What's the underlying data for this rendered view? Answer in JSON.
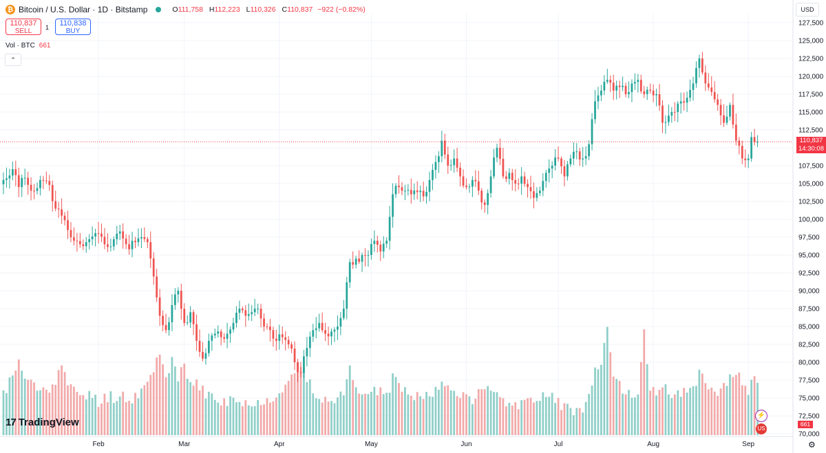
{
  "header": {
    "coin_symbol": "₿",
    "title": "Bitcoin / U.S. Dollar · 1D · Bitstamp",
    "ohlc": {
      "o_label": "O",
      "o_value": "111,758",
      "h_label": "H",
      "h_value": "112,223",
      "l_label": "L",
      "l_value": "110,326",
      "c_label": "C",
      "c_value": "110,837",
      "change": "−922 (−0.82%)"
    }
  },
  "trade": {
    "sell_price": "110,837",
    "sell_label": "SELL",
    "spread": "1",
    "buy_price": "110,838",
    "buy_label": "BUY"
  },
  "volume_legend": {
    "label": "Vol · BTC",
    "value": "661"
  },
  "collapse_symbol": "⌃",
  "currency": "USD",
  "last_price_tag": {
    "price": "110,837",
    "countdown": "14:30:08"
  },
  "volume_tag": "661",
  "logo": {
    "mark": "17",
    "text": "TradingView"
  },
  "settings_symbol": "⚙",
  "badges": {
    "flash": "⚡",
    "flag": "US"
  },
  "colors": {
    "up": "#26a69a",
    "down": "#ef5350",
    "up_vol": "#8fcfc8",
    "down_vol": "#f2a9a9",
    "grid": "#f0f3fa",
    "axis_text": "#131722",
    "last_price_line": "#f23645"
  },
  "chart_data": {
    "type": "candlestick",
    "title": "Bitcoin / U.S. Dollar · 1D · Bitstamp",
    "y_ticks": [
      70000,
      72500,
      75000,
      77500,
      80000,
      82500,
      85000,
      87500,
      90000,
      92500,
      95000,
      97500,
      100000,
      102500,
      105000,
      107500,
      110000,
      112500,
      115000,
      117500,
      120000,
      122500,
      125000,
      127500
    ],
    "ylim": [
      70000,
      127500
    ],
    "x_labels": [
      {
        "label": "Feb",
        "day": 31
      },
      {
        "label": "Mar",
        "day": 59
      },
      {
        "label": "Apr",
        "day": 90
      },
      {
        "label": "May",
        "day": 120
      },
      {
        "label": "Jun",
        "day": 151
      },
      {
        "label": "Jul",
        "day": 181
      },
      {
        "label": "Aug",
        "day": 212
      },
      {
        "label": "Sep",
        "day": 243
      }
    ],
    "day_range": [
      0,
      247
    ],
    "volume_max": 1500,
    "keypoints": [
      [
        0,
        105500,
        500
      ],
      [
        3,
        107000,
        780
      ],
      [
        5,
        104500,
        900
      ],
      [
        7,
        105800,
        720
      ],
      [
        9,
        104000,
        650
      ],
      [
        12,
        105500,
        560
      ],
      [
        15,
        104800,
        610
      ],
      [
        17,
        101500,
        700
      ],
      [
        19,
        100500,
        900
      ],
      [
        21,
        98500,
        600
      ],
      [
        23,
        97000,
        560
      ],
      [
        25,
        96500,
        540
      ],
      [
        27,
        96800,
        470
      ],
      [
        29,
        97600,
        520
      ],
      [
        31,
        98000,
        430
      ],
      [
        33,
        96500,
        470
      ],
      [
        35,
        96200,
        500
      ],
      [
        37,
        98000,
        460
      ],
      [
        39,
        97300,
        520
      ],
      [
        41,
        95800,
        440
      ],
      [
        43,
        96800,
        490
      ],
      [
        45,
        97500,
        570
      ],
      [
        47,
        96800,
        640
      ],
      [
        49,
        92000,
        860
      ],
      [
        51,
        86500,
        1050
      ],
      [
        53,
        84500,
        770
      ],
      [
        55,
        88000,
        920
      ],
      [
        57,
        90000,
        700
      ],
      [
        59,
        85500,
        860
      ],
      [
        61,
        87000,
        600
      ],
      [
        63,
        83000,
        700
      ],
      [
        65,
        80500,
        560
      ],
      [
        67,
        83000,
        500
      ],
      [
        69,
        84000,
        460
      ],
      [
        71,
        83500,
        400
      ],
      [
        73,
        84000,
        420
      ],
      [
        75,
        85500,
        440
      ],
      [
        77,
        87500,
        380
      ],
      [
        79,
        86500,
        400
      ],
      [
        81,
        87000,
        430
      ],
      [
        83,
        87500,
        400
      ],
      [
        85,
        85000,
        440
      ],
      [
        87,
        84500,
        460
      ],
      [
        89,
        83000,
        540
      ],
      [
        91,
        83500,
        600
      ],
      [
        93,
        82500,
        650
      ],
      [
        95,
        80000,
        800
      ],
      [
        97,
        78500,
        900
      ],
      [
        99,
        82000,
        700
      ],
      [
        101,
        84500,
        560
      ],
      [
        103,
        85500,
        500
      ],
      [
        105,
        84000,
        460
      ],
      [
        107,
        84300,
        430
      ],
      [
        109,
        85000,
        440
      ],
      [
        111,
        87500,
        520
      ],
      [
        113,
        94000,
        850
      ],
      [
        115,
        94500,
        620
      ],
      [
        117,
        95000,
        560
      ],
      [
        119,
        95000,
        520
      ],
      [
        121,
        97000,
        540
      ],
      [
        123,
        95500,
        560
      ],
      [
        125,
        97000,
        520
      ],
      [
        127,
        103500,
        700
      ],
      [
        129,
        104500,
        620
      ],
      [
        131,
        104000,
        580
      ],
      [
        133,
        103500,
        540
      ],
      [
        135,
        103800,
        500
      ],
      [
        137,
        103200,
        480
      ],
      [
        139,
        105500,
        520
      ],
      [
        141,
        108000,
        600
      ],
      [
        143,
        111000,
        700
      ],
      [
        145,
        107500,
        560
      ],
      [
        147,
        108500,
        520
      ],
      [
        149,
        106000,
        500
      ],
      [
        151,
        104500,
        480
      ],
      [
        153,
        105500,
        470
      ],
      [
        155,
        104000,
        520
      ],
      [
        157,
        102000,
        600
      ],
      [
        159,
        106000,
        640
      ],
      [
        161,
        110000,
        500
      ],
      [
        163,
        106000,
        460
      ],
      [
        165,
        106500,
        420
      ],
      [
        167,
        105000,
        400
      ],
      [
        169,
        106000,
        380
      ],
      [
        171,
        104500,
        400
      ],
      [
        173,
        103000,
        480
      ],
      [
        175,
        104000,
        500
      ],
      [
        177,
        106500,
        540
      ],
      [
        179,
        107500,
        480
      ],
      [
        181,
        108500,
        420
      ],
      [
        183,
        106000,
        360
      ],
      [
        185,
        108500,
        330
      ],
      [
        187,
        109500,
        310
      ],
      [
        189,
        108500,
        290
      ],
      [
        191,
        110500,
        450
      ],
      [
        193,
        116500,
        860
      ],
      [
        195,
        118000,
        820
      ],
      [
        197,
        119500,
        1350
      ],
      [
        199,
        118000,
        700
      ],
      [
        201,
        118500,
        640
      ],
      [
        203,
        117500,
        560
      ],
      [
        205,
        119000,
        520
      ],
      [
        207,
        119500,
        480
      ],
      [
        209,
        117500,
        1340
      ],
      [
        211,
        118000,
        560
      ],
      [
        213,
        117500,
        520
      ],
      [
        215,
        113500,
        680
      ],
      [
        217,
        114500,
        540
      ],
      [
        219,
        115000,
        520
      ],
      [
        221,
        116500,
        480
      ],
      [
        223,
        117000,
        560
      ],
      [
        225,
        119000,
        600
      ],
      [
        227,
        122500,
        800
      ],
      [
        229,
        119000,
        700
      ],
      [
        231,
        117800,
        600
      ],
      [
        233,
        116000,
        560
      ],
      [
        235,
        113500,
        640
      ],
      [
        237,
        116000,
        720
      ],
      [
        239,
        111000,
        760
      ],
      [
        241,
        108500,
        680
      ],
      [
        243,
        108500,
        560
      ],
      [
        244,
        111500,
        760
      ],
      [
        245,
        110800,
        740
      ],
      [
        246,
        110837,
        661
      ]
    ],
    "last_price": 110837
  }
}
